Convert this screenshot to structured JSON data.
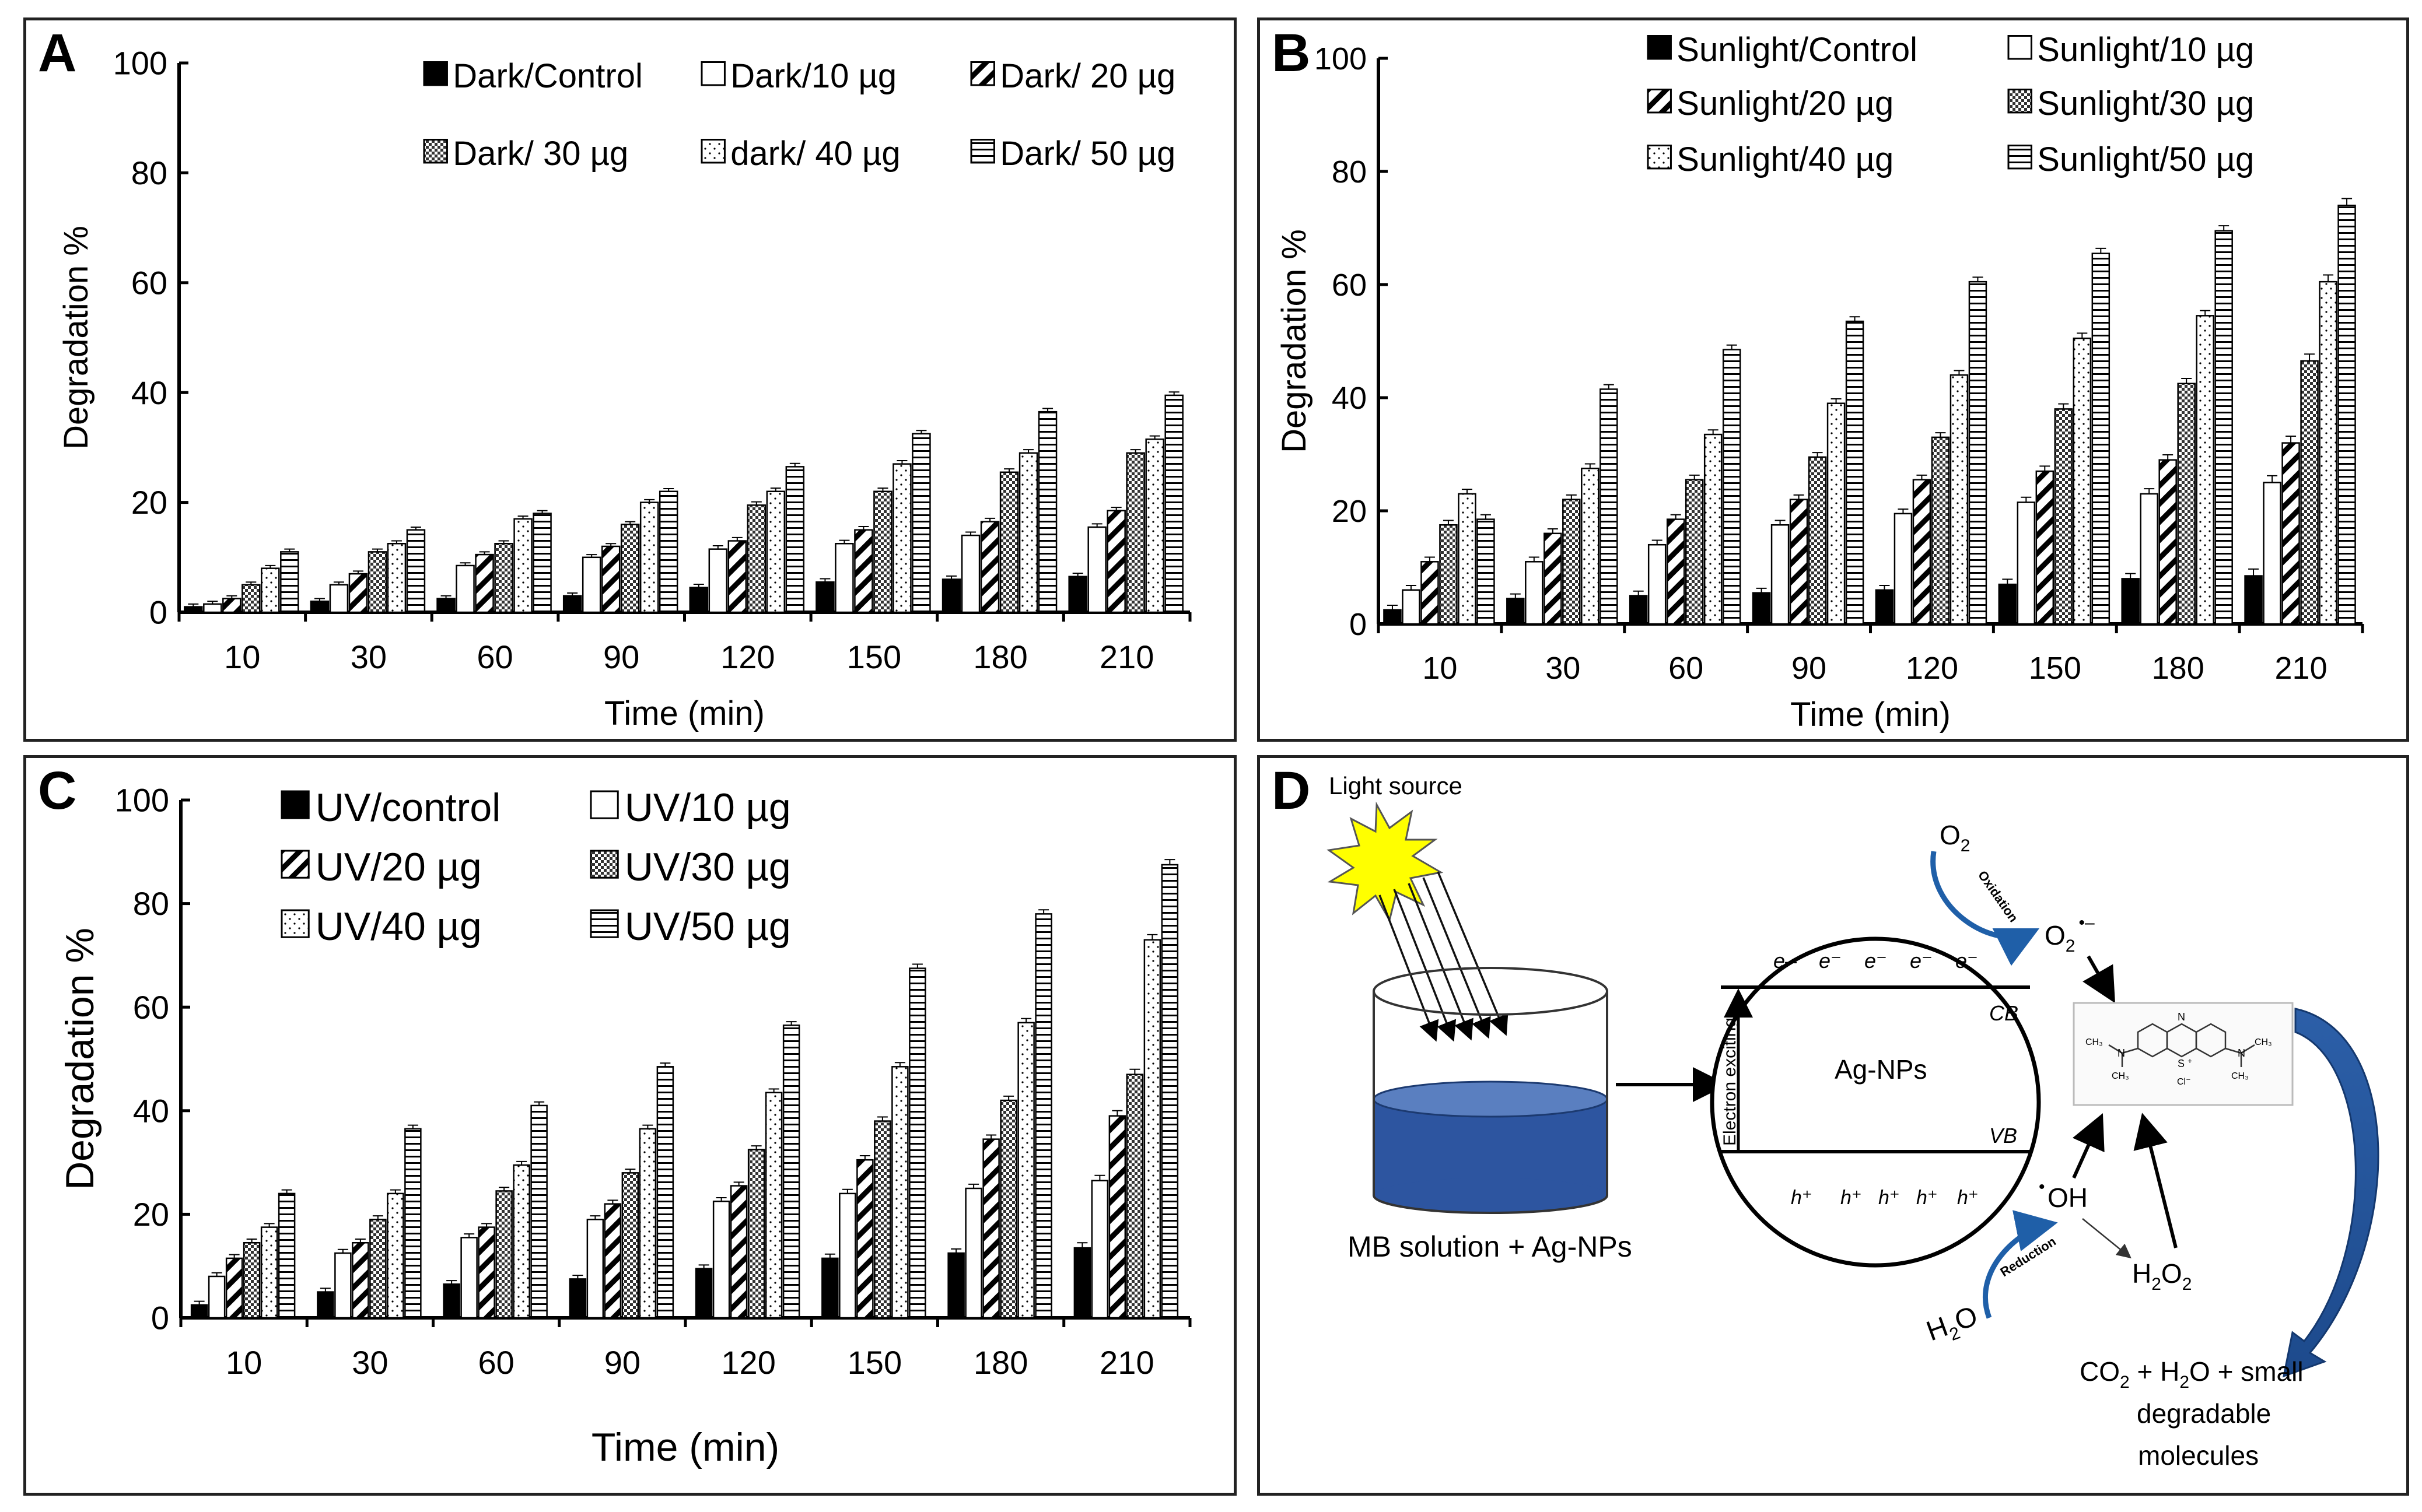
{
  "figure": {
    "panel_a_letter": "A",
    "panel_b_letter": "B",
    "panel_c_letter": "C",
    "panel_d_letter": "D"
  },
  "chart_data": [
    {
      "id": "A",
      "type": "bar",
      "title": "",
      "xlabel": "Time (min)",
      "ylabel": "Degradation %",
      "ylim": [
        0,
        100
      ],
      "yticks": [
        0,
        20,
        40,
        60,
        80,
        100
      ],
      "categories": [
        "10",
        "30",
        "60",
        "90",
        "120",
        "150",
        "180",
        "210"
      ],
      "legend_position": "top-right",
      "series": [
        {
          "name": "Dark/Control",
          "pattern": "solid",
          "values": [
            1,
            2,
            2.5,
            3,
            4.5,
            5.5,
            6,
            6.5
          ]
        },
        {
          "name": "Dark/10 µg",
          "pattern": "white",
          "values": [
            1.5,
            5,
            8.5,
            10,
            11.5,
            12.5,
            14,
            15.5
          ]
        },
        {
          "name": "Dark/ 20 µg",
          "pattern": "diag",
          "values": [
            2.5,
            7,
            10.5,
            12,
            13,
            15,
            16.5,
            18.5
          ]
        },
        {
          "name": "Dark/ 30 µg",
          "pattern": "check",
          "values": [
            5,
            11,
            12.5,
            16,
            19.5,
            22,
            25.5,
            29
          ]
        },
        {
          "name": "dark/ 40 µg",
          "pattern": "dots",
          "values": [
            8,
            12.5,
            17,
            20,
            22,
            27,
            29,
            31.5
          ]
        },
        {
          "name": "Dark/ 50 µg",
          "pattern": "hlines",
          "values": [
            11,
            15,
            18,
            22,
            26.5,
            32.5,
            36.5,
            39.5
          ]
        }
      ],
      "errors": [
        0.5,
        0.5,
        0.5,
        0.5,
        0.6,
        0.6,
        0.6,
        0.6
      ]
    },
    {
      "id": "B",
      "type": "bar",
      "title": "",
      "xlabel": "Time (min)",
      "ylabel": "Degradation %",
      "ylim": [
        0,
        100
      ],
      "yticks": [
        0,
        20,
        40,
        60,
        80,
        100
      ],
      "categories": [
        "10",
        "30",
        "60",
        "90",
        "120",
        "150",
        "180",
        "210"
      ],
      "legend_position": "top",
      "series": [
        {
          "name": "Sunlight/Control",
          "pattern": "solid",
          "values": [
            2.5,
            4.5,
            5,
            5.5,
            6,
            7,
            8,
            8.5
          ]
        },
        {
          "name": "Sunlight/10 µg",
          "pattern": "white",
          "values": [
            6,
            11,
            14,
            17.5,
            19.5,
            21.5,
            23,
            25
          ]
        },
        {
          "name": "Sunlight/20 µg",
          "pattern": "diag",
          "values": [
            11,
            16,
            18.5,
            22,
            25.5,
            27,
            29,
            32
          ]
        },
        {
          "name": "Sunlight/30 µg",
          "pattern": "check",
          "values": [
            17.5,
            22,
            25.5,
            29.5,
            33,
            38,
            42.5,
            46.5
          ]
        },
        {
          "name": "Sunlight/40 µg",
          "pattern": "dots",
          "values": [
            23,
            27.5,
            33.5,
            39,
            44,
            50.5,
            54.5,
            60.5
          ]
        },
        {
          "name": "Sunlight/50 µg",
          "pattern": "hlines",
          "values": [
            18.5,
            41.5,
            48.5,
            53.5,
            60.5,
            65.5,
            69.5,
            74
          ]
        }
      ],
      "errors": [
        0.8,
        0.8,
        0.8,
        0.8,
        0.8,
        0.9,
        0.9,
        1.2
      ]
    },
    {
      "id": "C",
      "type": "bar",
      "title": "",
      "xlabel": "Time (min)",
      "ylabel": "Degradation %",
      "ylim": [
        0,
        100
      ],
      "yticks": [
        0,
        20,
        40,
        60,
        80,
        100
      ],
      "categories": [
        "10",
        "30",
        "60",
        "90",
        "120",
        "150",
        "180",
        "210"
      ],
      "legend_position": "top-left",
      "series": [
        {
          "name": "UV/control",
          "pattern": "solid",
          "values": [
            2.5,
            5,
            6.5,
            7.5,
            9.5,
            11.5,
            12.5,
            13.5
          ]
        },
        {
          "name": "UV/10 µg",
          "pattern": "white",
          "values": [
            8,
            12.5,
            15.5,
            19,
            22.5,
            24,
            25,
            26.5
          ]
        },
        {
          "name": "UV/20 µg",
          "pattern": "diag",
          "values": [
            11.5,
            14.5,
            17.5,
            22,
            25.5,
            30.5,
            34.5,
            39
          ]
        },
        {
          "name": "UV/30 µg",
          "pattern": "check",
          "values": [
            14.5,
            19,
            24.5,
            28,
            32.5,
            38,
            42,
            47
          ]
        },
        {
          "name": "UV/40 µg",
          "pattern": "dots",
          "values": [
            17.5,
            24,
            29.5,
            36.5,
            43.5,
            48.5,
            57,
            73
          ]
        },
        {
          "name": "UV/50 µg",
          "pattern": "hlines",
          "values": [
            24,
            36.5,
            41,
            48.5,
            56.5,
            67.5,
            78,
            87.5
          ]
        }
      ],
      "errors": [
        0.7,
        0.7,
        0.7,
        0.7,
        0.7,
        0.8,
        0.8,
        1.0
      ]
    }
  ],
  "diagram": {
    "light_source": "Light source",
    "solution_label": "MB solution + Ag-NPs",
    "electrons": [
      "e–",
      "e⁻",
      "e⁻",
      "e⁻",
      "e⁻"
    ],
    "holes": [
      "h⁺",
      "h⁺",
      "h⁺",
      "h⁺",
      "h⁺"
    ],
    "cb": "CB",
    "vb": "VB",
    "agnp": "Ag-NPs",
    "electron_exciting": "Electron exciting",
    "o2_base": "O",
    "o2_sub": "2",
    "superoxide_base": "O",
    "superoxide_sub": "2",
    "superoxide_sup": "•–",
    "oxidation": "Oxidation",
    "reduction": "Reduction",
    "oh_dot": "•",
    "oh": "OH",
    "h2o_h": "H",
    "h2o_sub": "2",
    "h2o_o": "O",
    "h2o2_h": "H",
    "h2o2_sub1": "2",
    "h2o2_o": "O",
    "h2o2_sub2": "2",
    "products_line1_a": "CO",
    "products_line1_sub1": "2",
    "products_line1_b": " + H",
    "products_line1_sub2": "2",
    "products_line1_c": "O + small",
    "products_line2": "degradable",
    "products_line3": "molecules",
    "mb_n1": "N",
    "mb_n2": "N",
    "mb_n3": "N",
    "mb_s": "S",
    "mb_plus": "+",
    "mb_cl": "Cl⁻",
    "mb_ch3_1": "CH₃",
    "mb_ch3_2": "CH₃",
    "mb_ch3_3": "CH₃",
    "mb_ch3_4": "CH₃"
  }
}
